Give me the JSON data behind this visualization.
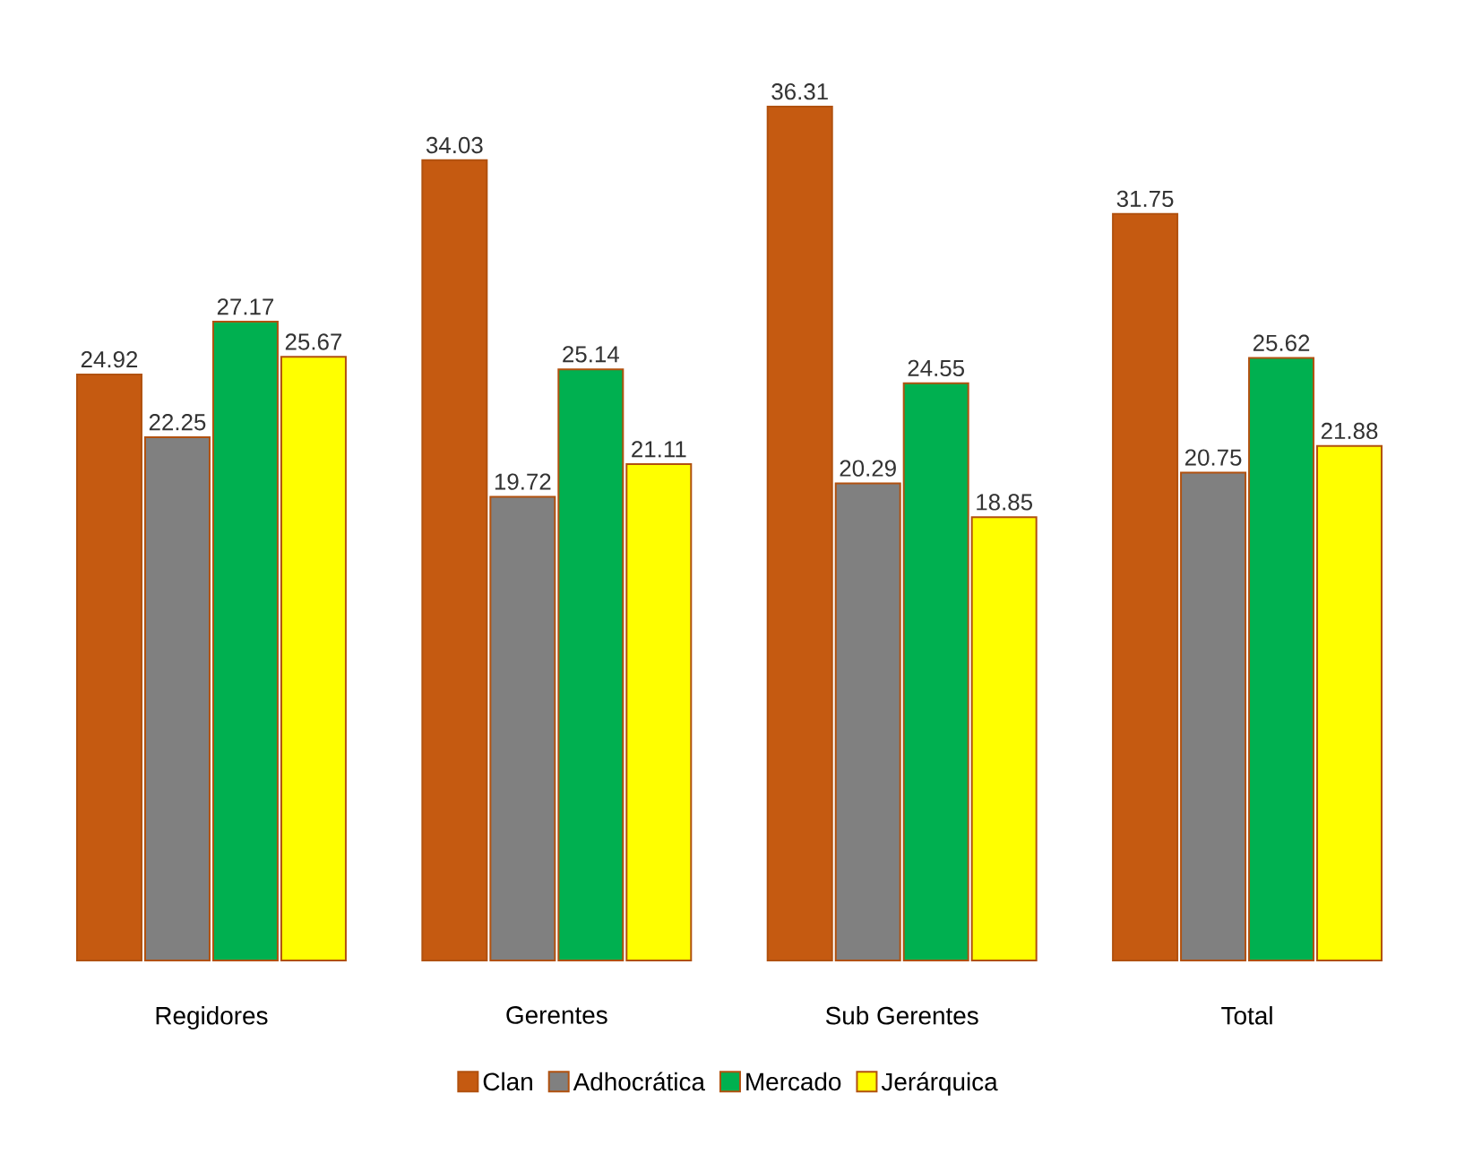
{
  "chart_data": {
    "type": "bar",
    "categories": [
      "Regidores",
      "Gerentes",
      "Sub Gerentes",
      "Total"
    ],
    "series": [
      {
        "name": "Clan",
        "color": "#c55a11",
        "values": [
          24.92,
          34.03,
          36.31,
          31.75
        ]
      },
      {
        "name": "Adhocrática",
        "color": "#808080",
        "values": [
          22.25,
          19.72,
          20.29,
          20.75
        ]
      },
      {
        "name": "Mercado",
        "color": "#00b050",
        "values": [
          27.17,
          25.14,
          24.55,
          25.62
        ]
      },
      {
        "name": "Jerárquica",
        "color": "#ffff00",
        "values": [
          25.67,
          21.11,
          18.85,
          21.88
        ]
      }
    ],
    "data_labels": true,
    "legend": "bottom"
  }
}
